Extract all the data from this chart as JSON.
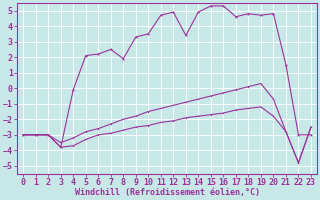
{
  "background_color": "#c8e8e8",
  "grid_color": "#aacccc",
  "line_color": "#993399",
  "xlabel": "Windchill (Refroidissement éolien,°C)",
  "xlim": [
    -0.5,
    23.5
  ],
  "ylim": [
    -5.5,
    5.5
  ],
  "xticks": [
    0,
    1,
    2,
    3,
    4,
    5,
    6,
    7,
    8,
    9,
    10,
    11,
    12,
    13,
    14,
    15,
    16,
    17,
    18,
    19,
    20,
    21,
    22,
    23
  ],
  "yticks": [
    -5,
    -4,
    -3,
    -2,
    -1,
    0,
    1,
    2,
    3,
    4,
    5
  ],
  "line_top_x": [
    0,
    1,
    2,
    3,
    4,
    5,
    6,
    7,
    8,
    9,
    10,
    11,
    12,
    13,
    14,
    15,
    16,
    17,
    18,
    19,
    20,
    21,
    22,
    23
  ],
  "line_top_y": [
    -3.0,
    -3.0,
    -3.0,
    -3.8,
    -0.1,
    2.1,
    2.2,
    2.5,
    1.9,
    3.3,
    3.5,
    4.7,
    4.9,
    3.4,
    4.9,
    5.3,
    5.3,
    4.6,
    4.8,
    4.7,
    4.8,
    1.5,
    -3.0,
    -3.0
  ],
  "line_mid_x": [
    0,
    1,
    2,
    3,
    4,
    5,
    6,
    7,
    8,
    9,
    10,
    11,
    12,
    13,
    14,
    15,
    16,
    17,
    18,
    19,
    20,
    21,
    22,
    23
  ],
  "line_mid_y": [
    -3.0,
    -3.0,
    -3.0,
    -3.5,
    -3.2,
    -2.8,
    -2.6,
    -2.3,
    -2.0,
    -1.8,
    -1.5,
    -1.3,
    -1.1,
    -0.9,
    -0.7,
    -0.5,
    -0.3,
    -0.1,
    0.1,
    0.3,
    -0.7,
    -2.8,
    -4.8,
    -2.5
  ],
  "line_bot_x": [
    0,
    1,
    2,
    3,
    4,
    5,
    6,
    7,
    8,
    9,
    10,
    11,
    12,
    13,
    14,
    15,
    16,
    17,
    18,
    19,
    20,
    21,
    22,
    23
  ],
  "line_bot_y": [
    -3.0,
    -3.0,
    -3.0,
    -3.8,
    -3.7,
    -3.3,
    -3.0,
    -2.9,
    -2.7,
    -2.5,
    -2.4,
    -2.2,
    -2.1,
    -1.9,
    -1.8,
    -1.7,
    -1.6,
    -1.4,
    -1.3,
    -1.2,
    -1.8,
    -2.8,
    -4.8,
    -2.5
  ],
  "font_size": 6,
  "font_color": "#993399"
}
